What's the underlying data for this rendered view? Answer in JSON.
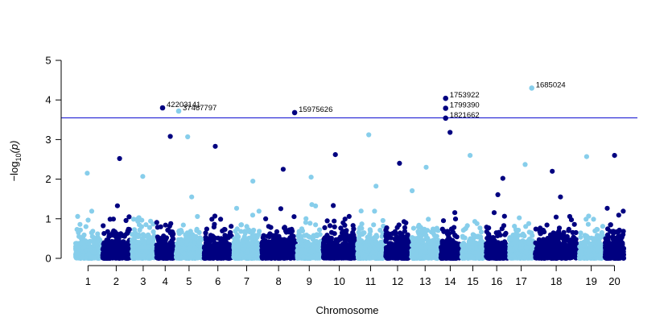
{
  "chart_data": {
    "type": "scatter",
    "subtype": "manhattan",
    "xlabel": "Chromosome",
    "ylabel_main": "−log",
    "ylabel_sub": "10",
    "ylabel_arg": "(p)",
    "ylim": [
      0,
      5
    ],
    "y_ticks": [
      "0",
      "1",
      "2",
      "3",
      "4",
      "5"
    ],
    "threshold": 3.55,
    "grid": false,
    "legend": "none",
    "colors": {
      "odd": "#87ceeb",
      "even": "#000080",
      "threshold_line": "#0000cd",
      "axis": "#000000"
    },
    "chromosomes": [
      "1",
      "2",
      "3",
      "4",
      "5",
      "6",
      "7",
      "8",
      "9",
      "10",
      "11",
      "12",
      "13",
      "14",
      "15",
      "16",
      "17",
      "18",
      "19",
      "20"
    ],
    "chromosome_relative_lengths": [
      1.0,
      1.1,
      0.9,
      0.7,
      1.05,
      1.1,
      1.05,
      1.35,
      0.95,
      1.3,
      1.05,
      0.95,
      1.1,
      0.75,
      0.9,
      0.85,
      0.95,
      1.7,
      0.95,
      0.75
    ],
    "chromosome_max_values": [
      2.15,
      2.52,
      2.07,
      3.08,
      3.07,
      2.83,
      1.95,
      2.25,
      2.05,
      2.62,
      3.12,
      2.4,
      2.3,
      3.18,
      2.6,
      2.02,
      2.37,
      2.2,
      2.57,
      2.6
    ],
    "labeled_snps": [
      {
        "label": "42203141",
        "chromosome": "4",
        "position": 0.35,
        "value": 3.8
      },
      {
        "label": "37467797",
        "chromosome": "5",
        "position": 0.1,
        "value": 3.72
      },
      {
        "label": "15975626",
        "chromosome": "8",
        "position": 0.98,
        "value": 3.68
      },
      {
        "label": "1753922",
        "chromosome": "14",
        "position": 0.25,
        "value": 4.04
      },
      {
        "label": "1799390",
        "chromosome": "14",
        "position": 0.25,
        "value": 3.79
      },
      {
        "label": "1821662",
        "chromosome": "14",
        "position": 0.25,
        "value": 3.54
      },
      {
        "label": "1685024",
        "chromosome": "17",
        "position": 0.95,
        "value": 4.3
      }
    ]
  }
}
